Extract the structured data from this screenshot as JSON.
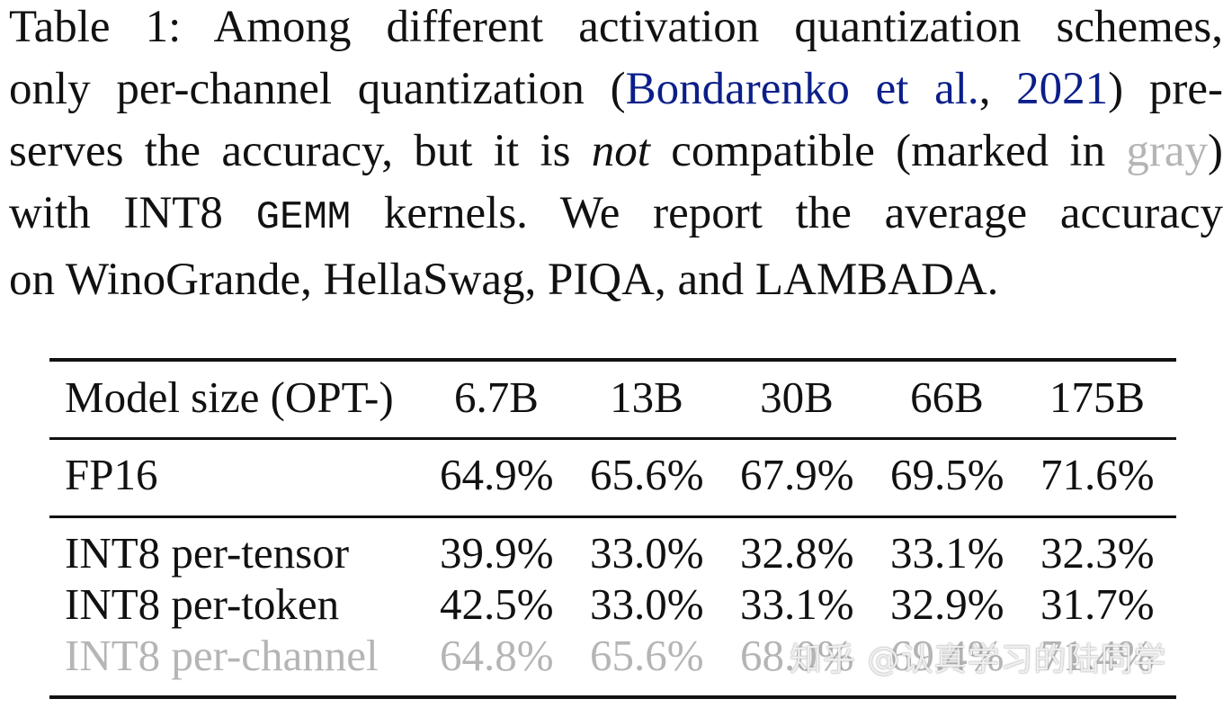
{
  "caption": {
    "line1": "Table 1: Among different activation quantization schemes,",
    "line2_pre": "only per-channel quantization (",
    "line2_cite_author": "Bondarenko et al.",
    "line2_comma": ", ",
    "line2_cite_year": "2021",
    "line2_post": ") pre-",
    "line3_pre": "serves the accuracy, but it is ",
    "line3_italic": "not",
    "line3_mid": " compatible (marked in ",
    "line3_gray": "gray",
    "line3_post": ")",
    "line4_pre": "with INT8 ",
    "line4_mono": "GEMM",
    "line4_post": " kernels. We report the average accuracy",
    "line5": "on WinoGrande, HellaSwag, PIQA, and LAMBADA."
  },
  "table": {
    "header": [
      "Model size (OPT-)",
      "6.7B",
      "13B",
      "30B",
      "66B",
      "175B"
    ],
    "rows": [
      {
        "label": "FP16",
        "values": [
          "64.9%",
          "65.6%",
          "67.9%",
          "69.5%",
          "71.6%"
        ],
        "gray": false
      },
      {
        "label": "INT8 per-tensor",
        "values": [
          "39.9%",
          "33.0%",
          "32.8%",
          "33.1%",
          "32.3%"
        ],
        "gray": false
      },
      {
        "label": "INT8 per-token",
        "values": [
          "42.5%",
          "33.0%",
          "33.1%",
          "32.9%",
          "31.7%"
        ],
        "gray": false
      },
      {
        "label": "INT8 per-channel",
        "values": [
          "64.8%",
          "65.6%",
          "68.0%",
          "69.4%",
          "71.4%"
        ],
        "gray": true
      }
    ]
  },
  "watermark": "知乎 @认真学习的陆同学",
  "colors": {
    "citation": "#0b1f8a",
    "gray_marked": "#b5b5b5",
    "text": "#111111"
  }
}
